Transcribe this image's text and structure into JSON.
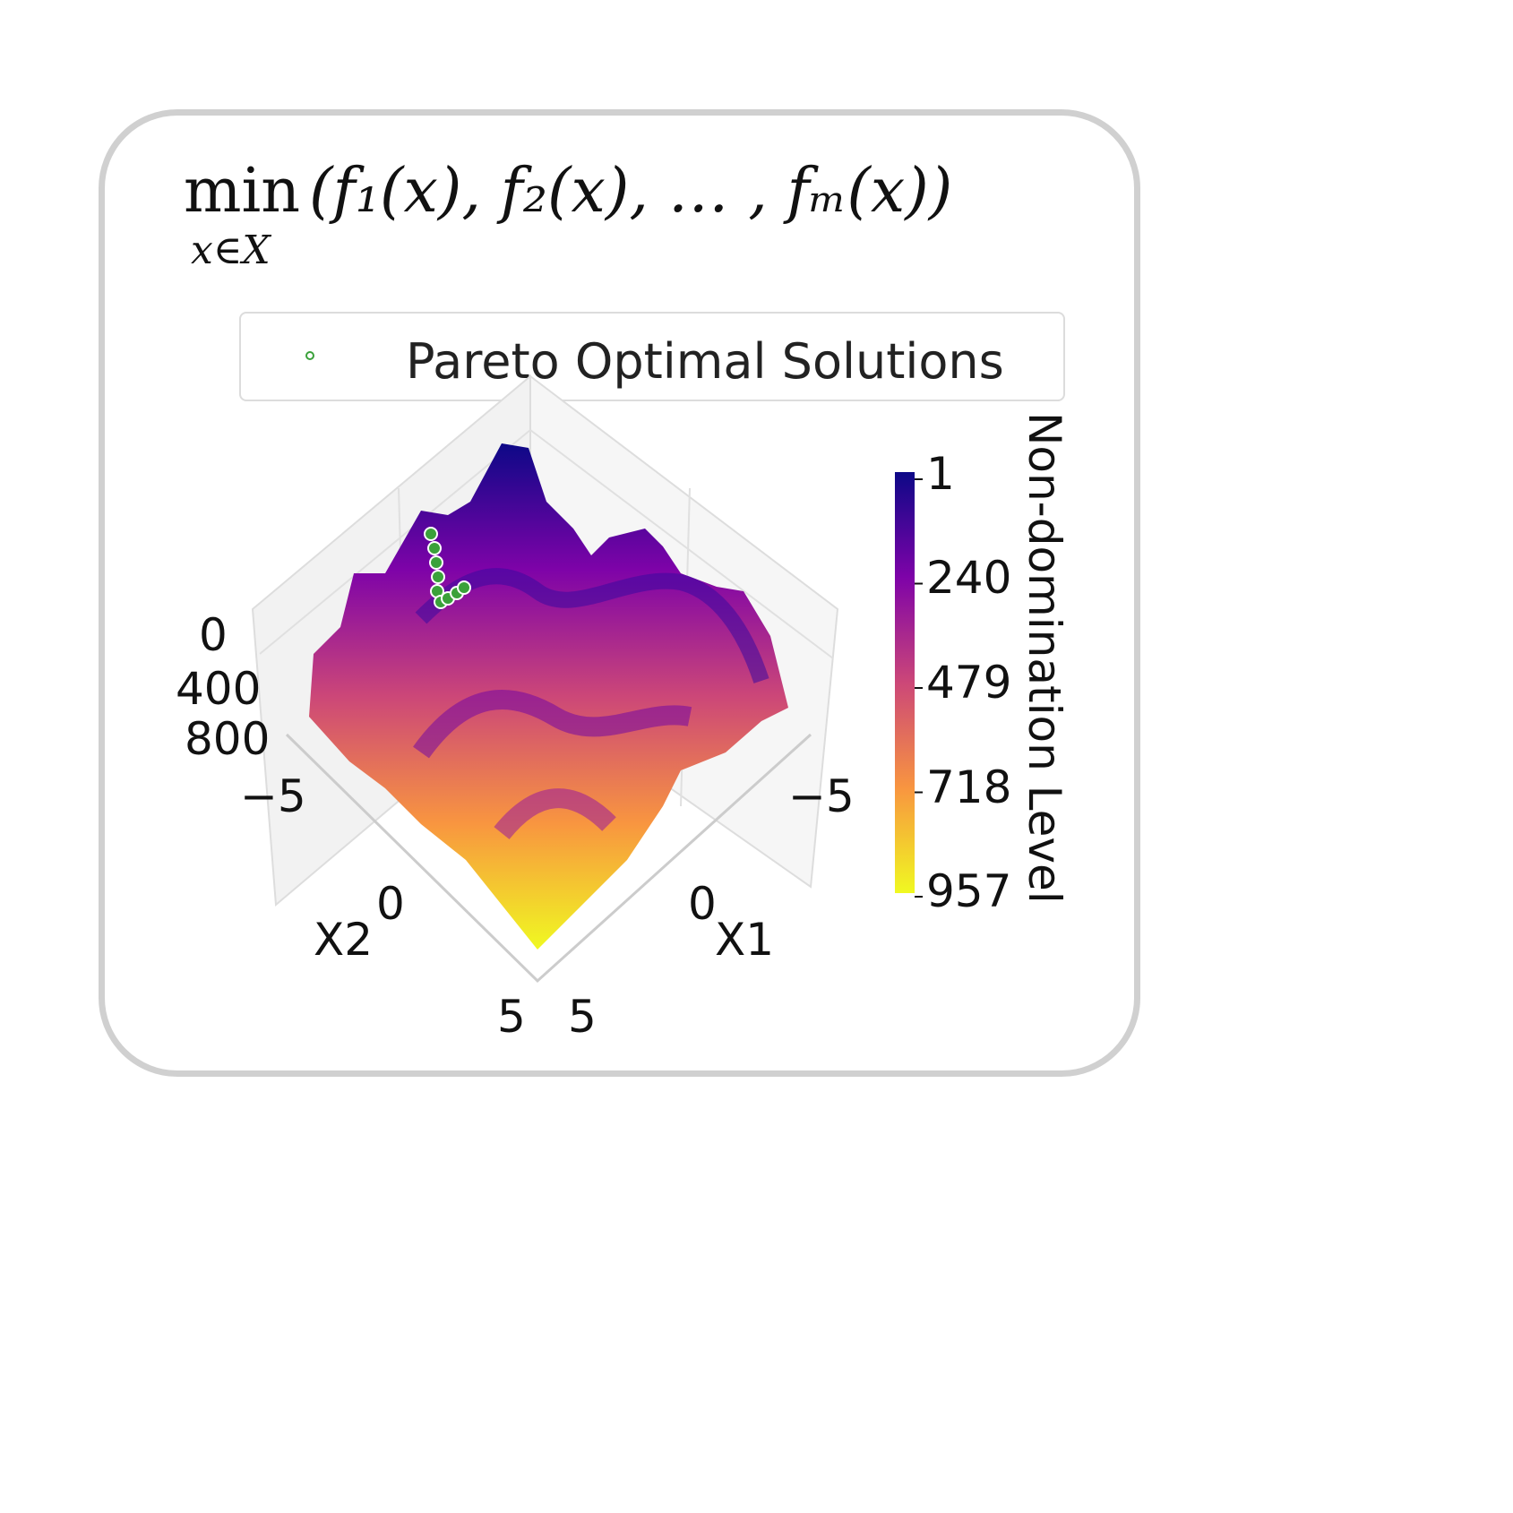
{
  "formula": {
    "min": "min",
    "subscript": "x∈X",
    "body": "(f₁(x), f₂(x), … , fₘ(x))"
  },
  "legend": {
    "label": "Pareto Optimal Solutions",
    "marker_color": "#3aa13a"
  },
  "chart_data": {
    "type": "surface3d",
    "xlabel": "X1",
    "ylabel": "X2",
    "zlabel": "",
    "x_ticks": [
      "−5",
      "0",
      "5"
    ],
    "y_ticks": [
      "−5",
      "0",
      "5"
    ],
    "z_ticks": [
      "0",
      "400",
      "800"
    ],
    "xlim": [
      -5,
      5
    ],
    "ylim": [
      -5,
      5
    ],
    "zlim": [
      0,
      957
    ],
    "colorbar": {
      "label": "Non-domination Level",
      "ticks": [
        "1",
        "240",
        "479",
        "718",
        "957"
      ],
      "range": [
        1,
        957
      ],
      "colormap": "plasma"
    },
    "series": [
      {
        "name": "Pareto Optimal Solutions",
        "color": "#3aa13a",
        "level": 1
      }
    ]
  }
}
